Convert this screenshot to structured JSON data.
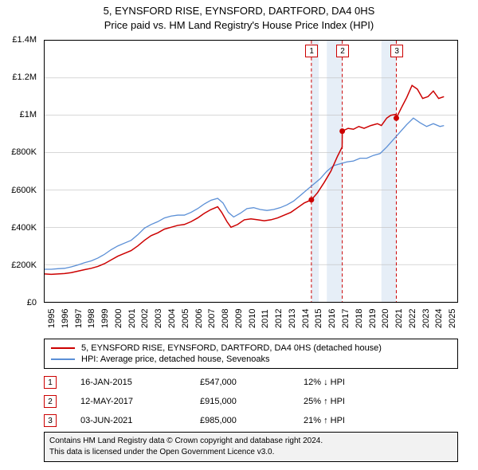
{
  "title_line1": "5, EYNSFORD RISE, EYNSFORD, DARTFORD, DA4 0HS",
  "title_line2": "Price paid vs. HM Land Registry's House Price Index (HPI)",
  "chart": {
    "type": "line",
    "plot_bg": "#ffffff",
    "border_color": "#000000",
    "grid_color": "#bfbfbf",
    "x_year_min": 1995,
    "x_year_max": 2026,
    "y_min": 0,
    "y_max": 1400000,
    "y_tick_step": 200000,
    "y_labels": [
      "£0",
      "£200K",
      "£400K",
      "£600K",
      "£800K",
      "£1M",
      "£1.2M",
      "£1.4M"
    ],
    "x_years": [
      1995,
      1996,
      1997,
      1998,
      1999,
      2000,
      2001,
      2002,
      2003,
      2004,
      2005,
      2006,
      2007,
      2008,
      2009,
      2010,
      2011,
      2012,
      2013,
      2014,
      2015,
      2016,
      2017,
      2018,
      2019,
      2020,
      2021,
      2022,
      2023,
      2024,
      2025
    ],
    "bands": [
      {
        "year_from": 2015.04,
        "year_to": 2015.6,
        "fill": "#e6eef7"
      },
      {
        "year_from": 2016.2,
        "year_to": 2017.36,
        "fill": "#e6eef7"
      },
      {
        "year_from": 2020.3,
        "year_to": 2021.42,
        "fill": "#e6eef7"
      }
    ],
    "marker_lines": [
      {
        "id": "1",
        "year": 2015.04
      },
      {
        "id": "2",
        "year": 2017.36
      },
      {
        "id": "3",
        "year": 2021.42
      }
    ],
    "marker_box_border": "#cc0000",
    "marker_line_color": "#cc0000",
    "marker_line_dash": "4 3",
    "series": [
      {
        "name": "property",
        "label": "5, EYNSFORD RISE, EYNSFORD, DARTFORD, DA4 0HS (detached house)",
        "color": "#cc0000",
        "line_width": 1.5,
        "dot_color": "#cc0000",
        "dot_radius": 3.5,
        "dots_at_years": [
          2015.04,
          2017.36,
          2021.42
        ],
        "data": [
          [
            1995.0,
            150000
          ],
          [
            1995.5,
            148000
          ],
          [
            1996.0,
            150000
          ],
          [
            1996.5,
            152000
          ],
          [
            1997.0,
            157000
          ],
          [
            1997.5,
            165000
          ],
          [
            1998.0,
            173000
          ],
          [
            1998.5,
            180000
          ],
          [
            1999.0,
            190000
          ],
          [
            1999.5,
            205000
          ],
          [
            2000.0,
            225000
          ],
          [
            2000.5,
            245000
          ],
          [
            2001.0,
            260000
          ],
          [
            2001.5,
            275000
          ],
          [
            2002.0,
            300000
          ],
          [
            2002.5,
            330000
          ],
          [
            2003.0,
            355000
          ],
          [
            2003.5,
            370000
          ],
          [
            2004.0,
            390000
          ],
          [
            2004.5,
            400000
          ],
          [
            2005.0,
            410000
          ],
          [
            2005.5,
            415000
          ],
          [
            2006.0,
            430000
          ],
          [
            2006.5,
            450000
          ],
          [
            2007.0,
            475000
          ],
          [
            2007.5,
            495000
          ],
          [
            2008.0,
            510000
          ],
          [
            2008.3,
            480000
          ],
          [
            2008.7,
            430000
          ],
          [
            2009.0,
            400000
          ],
          [
            2009.5,
            415000
          ],
          [
            2010.0,
            440000
          ],
          [
            2010.5,
            445000
          ],
          [
            2011.0,
            440000
          ],
          [
            2011.5,
            435000
          ],
          [
            2012.0,
            440000
          ],
          [
            2012.5,
            450000
          ],
          [
            2013.0,
            465000
          ],
          [
            2013.5,
            480000
          ],
          [
            2014.0,
            505000
          ],
          [
            2014.5,
            530000
          ],
          [
            2015.04,
            547000
          ],
          [
            2015.5,
            585000
          ],
          [
            2016.0,
            640000
          ],
          [
            2016.5,
            700000
          ],
          [
            2017.0,
            780000
          ],
          [
            2017.35,
            830000
          ],
          [
            2017.36,
            915000
          ],
          [
            2017.8,
            930000
          ],
          [
            2018.2,
            925000
          ],
          [
            2018.6,
            940000
          ],
          [
            2019.0,
            930000
          ],
          [
            2019.5,
            945000
          ],
          [
            2020.0,
            955000
          ],
          [
            2020.3,
            945000
          ],
          [
            2020.7,
            985000
          ],
          [
            2021.0,
            1000000
          ],
          [
            2021.41,
            1005000
          ],
          [
            2021.42,
            985000
          ],
          [
            2021.8,
            1040000
          ],
          [
            2022.2,
            1095000
          ],
          [
            2022.6,
            1160000
          ],
          [
            2023.0,
            1140000
          ],
          [
            2023.4,
            1090000
          ],
          [
            2023.8,
            1100000
          ],
          [
            2024.2,
            1130000
          ],
          [
            2024.6,
            1090000
          ],
          [
            2025.0,
            1100000
          ]
        ]
      },
      {
        "name": "hpi",
        "label": "HPI: Average price, detached house, Sevenoaks",
        "color": "#5b8fd6",
        "line_width": 1.3,
        "data": [
          [
            1995.0,
            175000
          ],
          [
            1995.5,
            175000
          ],
          [
            1996.0,
            178000
          ],
          [
            1996.5,
            180000
          ],
          [
            1997.0,
            188000
          ],
          [
            1997.5,
            198000
          ],
          [
            1998.0,
            210000
          ],
          [
            1998.5,
            220000
          ],
          [
            1999.0,
            235000
          ],
          [
            1999.5,
            255000
          ],
          [
            2000.0,
            280000
          ],
          [
            2000.5,
            300000
          ],
          [
            2001.0,
            315000
          ],
          [
            2001.5,
            330000
          ],
          [
            2002.0,
            360000
          ],
          [
            2002.5,
            395000
          ],
          [
            2003.0,
            415000
          ],
          [
            2003.5,
            430000
          ],
          [
            2004.0,
            450000
          ],
          [
            2004.5,
            460000
          ],
          [
            2005.0,
            465000
          ],
          [
            2005.5,
            465000
          ],
          [
            2006.0,
            480000
          ],
          [
            2006.5,
            500000
          ],
          [
            2007.0,
            525000
          ],
          [
            2007.5,
            545000
          ],
          [
            2008.0,
            555000
          ],
          [
            2008.4,
            530000
          ],
          [
            2008.8,
            480000
          ],
          [
            2009.2,
            455000
          ],
          [
            2009.7,
            475000
          ],
          [
            2010.2,
            500000
          ],
          [
            2010.7,
            505000
          ],
          [
            2011.2,
            495000
          ],
          [
            2011.7,
            490000
          ],
          [
            2012.2,
            495000
          ],
          [
            2012.7,
            505000
          ],
          [
            2013.2,
            520000
          ],
          [
            2013.7,
            540000
          ],
          [
            2014.2,
            570000
          ],
          [
            2014.7,
            600000
          ],
          [
            2015.2,
            630000
          ],
          [
            2015.7,
            660000
          ],
          [
            2016.2,
            700000
          ],
          [
            2016.7,
            730000
          ],
          [
            2017.2,
            740000
          ],
          [
            2017.7,
            750000
          ],
          [
            2018.2,
            755000
          ],
          [
            2018.7,
            770000
          ],
          [
            2019.2,
            770000
          ],
          [
            2019.7,
            785000
          ],
          [
            2020.2,
            795000
          ],
          [
            2020.7,
            830000
          ],
          [
            2021.2,
            870000
          ],
          [
            2021.7,
            910000
          ],
          [
            2022.2,
            950000
          ],
          [
            2022.7,
            985000
          ],
          [
            2023.2,
            960000
          ],
          [
            2023.7,
            940000
          ],
          [
            2024.2,
            955000
          ],
          [
            2024.7,
            940000
          ],
          [
            2025.0,
            945000
          ]
        ]
      }
    ]
  },
  "legend": {
    "rows": [
      {
        "color": "#cc0000",
        "label": "5, EYNSFORD RISE, EYNSFORD, DARTFORD, DA4 0HS (detached house)"
      },
      {
        "color": "#5b8fd6",
        "label": "HPI: Average price, detached house, Sevenoaks"
      }
    ]
  },
  "transactions": {
    "marker_border": "#cc0000",
    "rows": [
      {
        "id": "1",
        "date": "16-JAN-2015",
        "price": "£547,000",
        "delta": "12% ↓ HPI"
      },
      {
        "id": "2",
        "date": "12-MAY-2017",
        "price": "£915,000",
        "delta": "25% ↑ HPI"
      },
      {
        "id": "3",
        "date": "03-JUN-2021",
        "price": "£985,000",
        "delta": "21% ↑ HPI"
      }
    ]
  },
  "footer": {
    "line1": "Contains HM Land Registry data © Crown copyright and database right 2024.",
    "line2": "This data is licensed under the Open Government Licence v3.0.",
    "bg": "#f2f2f2"
  }
}
